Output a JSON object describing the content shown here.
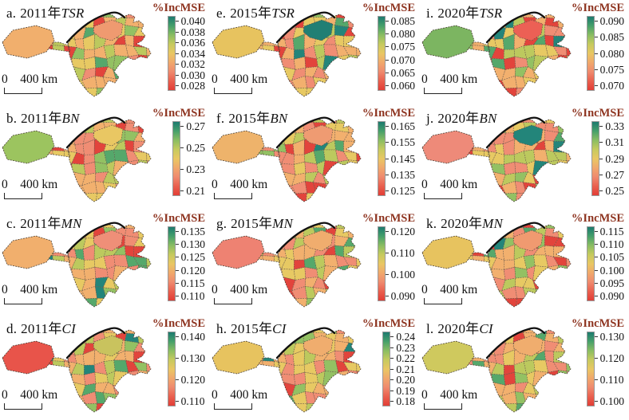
{
  "figure": {
    "legend_title": "%IncMSE",
    "legend_title_color": "#8e3420",
    "scalebar": {
      "zero": "0",
      "label": "400 km"
    }
  },
  "map": {
    "palette": [
      {
        "color": "#f2b06e",
        "w": 0.24
      },
      {
        "color": "#f08d74",
        "w": 0.2
      },
      {
        "color": "#e7c963",
        "w": 0.17
      },
      {
        "color": "#bcc95e",
        "w": 0.11
      },
      {
        "color": "#93c163",
        "w": 0.08
      },
      {
        "color": "#55a86b",
        "w": 0.05
      },
      {
        "color": "#23857a",
        "w": 0.03
      },
      {
        "color": "#e2443c",
        "w": 0.12
      }
    ],
    "colorbar_gradient": [
      "#1d7a6f",
      "#46a06b",
      "#8abd62",
      "#c6ca5e",
      "#e9c763",
      "#f0a86c",
      "#ef8a6e",
      "#e9604f",
      "#e23d36"
    ],
    "border_color": "#6a5848",
    "outline_color": "#4a4036",
    "river_color": "#111111"
  },
  "panels": [
    {
      "letter": "a.",
      "year": "2011年",
      "variable": "TSR",
      "ticks": [
        "0.040",
        "0.038",
        "0.036",
        "0.034",
        "0.032",
        "0.030",
        "0.028"
      ],
      "west_lobe": "#f1af6d",
      "north_patch": "#ef9a70",
      "seed": 1
    },
    {
      "letter": "e.",
      "year": "2015年",
      "variable": "TSR",
      "ticks": [
        "0.085",
        "0.080",
        "0.075",
        "0.070",
        "0.065",
        "0.060"
      ],
      "west_lobe": "#e7c35f",
      "north_patch": "#217f74",
      "seed": 5
    },
    {
      "letter": "i.",
      "year": "2020年",
      "variable": "TSR",
      "ticks": [
        "0.090",
        "0.085",
        "0.080",
        "0.075",
        "0.070"
      ],
      "west_lobe": "#7cb561",
      "north_patch": "#ec6055",
      "seed": 9
    },
    {
      "letter": "b.",
      "year": "2011年",
      "variable": "BN",
      "ticks": [
        "0.27",
        "0.25",
        "0.23",
        "0.21"
      ],
      "west_lobe": "#9cc45f",
      "north_patch": "#e9c763",
      "seed": 2
    },
    {
      "letter": "f.",
      "year": "2015年",
      "variable": "BN",
      "ticks": [
        "0.165",
        "0.155",
        "0.145",
        "0.135",
        "0.125"
      ],
      "west_lobe": "#eeb36b",
      "north_patch": "#ef9b72",
      "seed": 6
    },
    {
      "letter": "j.",
      "year": "2020年",
      "variable": "BN",
      "ticks": [
        "0.33",
        "0.31",
        "0.29",
        "0.27",
        "0.25"
      ],
      "west_lobe": "#ee8a79",
      "north_patch": "#23857a",
      "seed": 10
    },
    {
      "letter": "c.",
      "year": "2011年",
      "variable": "MN",
      "ticks": [
        "0.135",
        "0.130",
        "0.125",
        "0.120",
        "0.115",
        "0.110"
      ],
      "west_lobe": "#f1af6d",
      "north_patch": "#ef8f78",
      "seed": 3
    },
    {
      "letter": "g.",
      "year": "2015年",
      "variable": "MN",
      "ticks": [
        "0.120",
        "0.110",
        "0.100",
        "0.090"
      ],
      "west_lobe": "#ee8272",
      "north_patch": "#f0ad6e",
      "seed": 7
    },
    {
      "letter": "k.",
      "year": "2020年",
      "variable": "MN",
      "ticks": [
        "0.115",
        "0.110",
        "0.105",
        "0.100",
        "0.095",
        "0.090"
      ],
      "west_lobe": "#e7c35f",
      "north_patch": "#f09a70",
      "seed": 11
    },
    {
      "letter": "d.",
      "year": "2011年",
      "variable": "CI",
      "ticks": [
        "0.140",
        "0.130",
        "0.120",
        "0.110"
      ],
      "west_lobe": "#e8544a",
      "north_patch": "#c9c35e",
      "seed": 4
    },
    {
      "letter": "h.",
      "year": "2015年",
      "variable": "CI",
      "ticks": [
        "0.24",
        "0.23",
        "0.22",
        "0.21",
        "0.20",
        "0.19",
        "0.18"
      ],
      "west_lobe": "#e7c35f",
      "north_patch": "#f0ad6e",
      "seed": 8
    },
    {
      "letter": "l.",
      "year": "2020年",
      "variable": "CI",
      "ticks": [
        "0.130",
        "0.120",
        "0.110",
        "0.100"
      ],
      "west_lobe": "#cfc95e",
      "north_patch": "#f0ad6e",
      "seed": 12
    }
  ]
}
